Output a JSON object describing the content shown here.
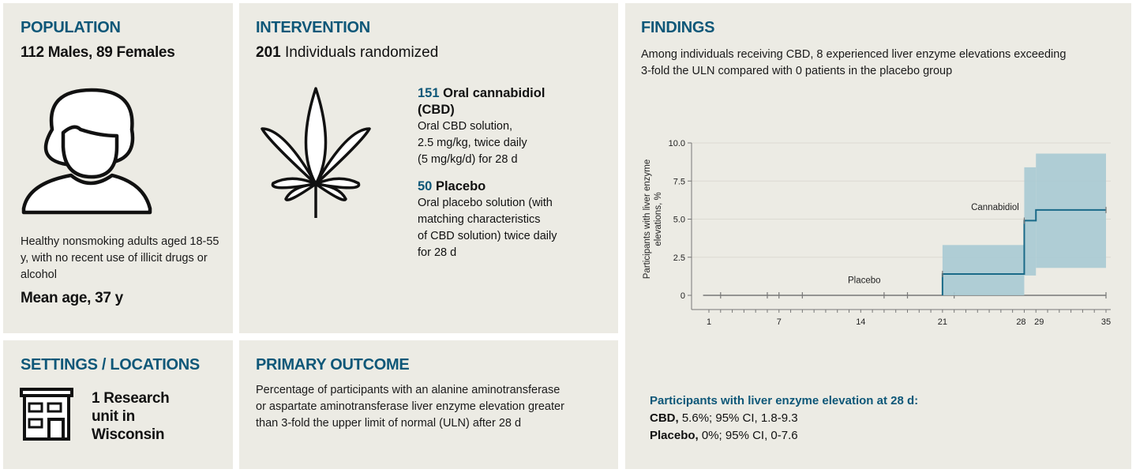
{
  "population": {
    "heading": "POPULATION",
    "summary": "112 Males, 89 Females",
    "description": "Healthy nonsmoking adults aged 18-55 y, with no recent use of illicit drugs or alcohol",
    "mean_age": "Mean age, 37 y",
    "icon": "person-icon"
  },
  "settings": {
    "heading": "SETTINGS / LOCATIONS",
    "text_line1": "1 Research",
    "text_line2": "unit in",
    "text_line3": "Wisconsin",
    "icon": "building-icon"
  },
  "intervention": {
    "heading": "INTERVENTION",
    "count": "201",
    "count_label": "Individuals randomized",
    "icon": "cannabis-leaf-icon",
    "arms": [
      {
        "n": "151",
        "name_line1": "Oral cannabidiol",
        "name_line2": "(CBD)",
        "desc_lines": [
          "Oral CBD solution,",
          "2.5 mg/kg, twice daily",
          "(5 mg/kg/d) for 28 d"
        ]
      },
      {
        "n": "50",
        "name_line1": "Placebo",
        "desc_lines": [
          "Oral placebo solution (with",
          "matching characteristics",
          "of CBD solution) twice daily",
          "for 28 d"
        ]
      }
    ]
  },
  "primary_outcome": {
    "heading": "PRIMARY OUTCOME",
    "lines": [
      "Percentage of participants with an alanine aminotransferase",
      "or aspartate aminotransferase liver enzyme elevation greater",
      "than 3-fold the upper limit of normal (ULN) after 28 d"
    ]
  },
  "findings": {
    "heading": "FINDINGS",
    "lines": [
      "Among individuals receiving CBD, 8 experienced liver enzyme elevations exceeding",
      "3-fold the ULN compared with 0 patients in the placebo group"
    ],
    "result_heading": "Participants with liver enzyme elevation at 28 d:",
    "results": [
      {
        "label": "CBD,",
        "value": "5.6%; 95% CI, 1.8-9.3"
      },
      {
        "label": "Placebo,",
        "value": "0%; 95% CI, 0-7.6"
      }
    ]
  },
  "colors": {
    "heading_blue": "#0e5778",
    "panel_bg": "#ecebe4",
    "ci_band": "#a9cad3",
    "cbd_line": "#1a6a88",
    "placebo_line": "#777777"
  },
  "chart_data": {
    "type": "line",
    "title": "",
    "xlabel": "",
    "ylabel": "Participants with liver enzyme elevations, %",
    "ylim": [
      0,
      10
    ],
    "xlim": [
      0,
      36
    ],
    "yticks": [
      0,
      2.5,
      5.0,
      7.5,
      10.0
    ],
    "ytick_labels": [
      "0",
      "2.5",
      "5.0",
      "7.5",
      "10.0"
    ],
    "xticks_labeled": [
      1,
      7,
      14,
      21,
      28,
      29,
      35
    ],
    "xticks_minor": [
      1,
      2,
      3,
      4,
      5,
      6,
      7,
      8,
      9,
      10,
      11,
      12,
      13,
      14,
      15,
      16,
      17,
      18,
      19,
      20,
      21,
      22,
      23,
      24,
      25,
      26,
      27,
      28,
      29,
      30,
      31,
      32,
      33,
      34,
      35
    ],
    "grid": "horizontal",
    "series": [
      {
        "name": "Placebo",
        "step": true,
        "x": [
          0.5,
          35
        ],
        "y": [
          0,
          0
        ],
        "censor_marks_x": [
          2,
          6,
          7,
          9,
          16,
          18,
          22,
          35
        ]
      },
      {
        "name": "Cannabidiol",
        "step": true,
        "x": [
          21,
          21,
          28,
          28,
          29,
          29,
          35
        ],
        "y": [
          0,
          1.4,
          1.4,
          4.9,
          4.9,
          5.6,
          5.6
        ],
        "ci": [
          {
            "x0": 21,
            "x1": 28,
            "lo": 0,
            "hi": 3.3
          },
          {
            "x0": 28,
            "x1": 29,
            "lo": 1.3,
            "hi": 8.4
          },
          {
            "x0": 29,
            "x1": 35,
            "lo": 1.8,
            "hi": 9.3
          }
        ],
        "censor_marks": [
          {
            "x": 21,
            "y": 1.4
          },
          {
            "x": 28,
            "y": 4.9
          },
          {
            "x": 35,
            "y": 5.6
          }
        ]
      }
    ],
    "annotations": [
      {
        "text": "Placebo",
        "x": 14.3,
        "y": 0.8
      },
      {
        "text": "Cannabidiol",
        "x": 25.5,
        "y": 5.6
      }
    ]
  }
}
